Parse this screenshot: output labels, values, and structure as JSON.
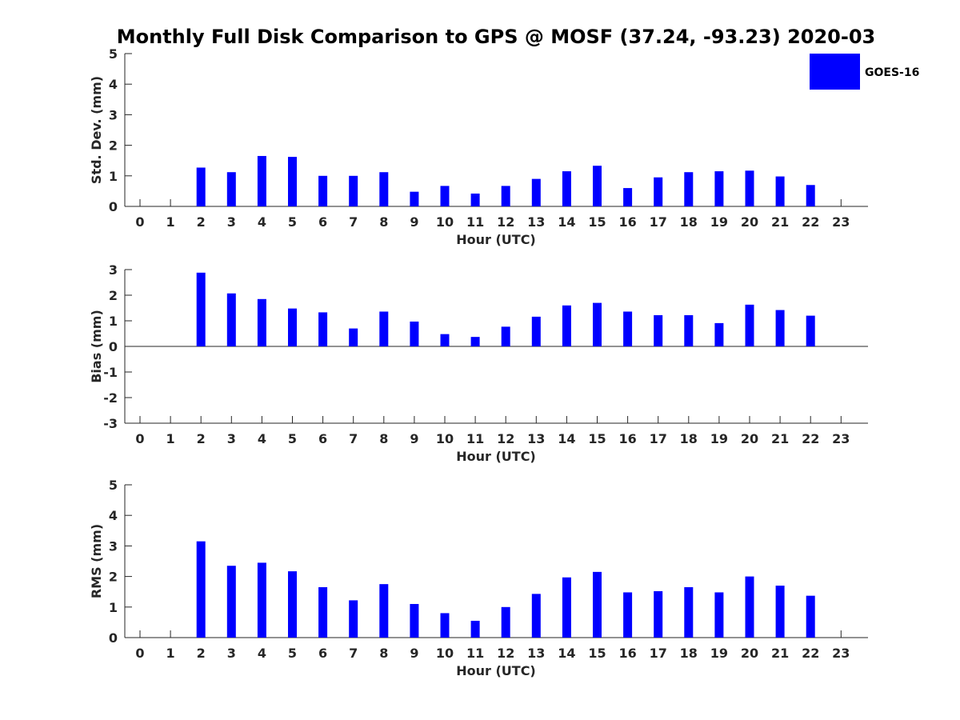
{
  "title": "Monthly Full Disk Comparison to GPS @ MOSF (37.24, -93.23) 2020-03",
  "bar_color": "#0000ff",
  "legend": {
    "label": "GOES-16",
    "placement": "top-right"
  },
  "chart_data": [
    {
      "type": "bar",
      "ylabel": "Std. Dev. (mm)",
      "xlabel": "Hour (UTC)",
      "ylim": [
        0,
        5
      ],
      "yticks": [
        0,
        1,
        2,
        3,
        4,
        5
      ],
      "categories": [
        "0",
        "1",
        "2",
        "3",
        "4",
        "5",
        "6",
        "7",
        "8",
        "9",
        "10",
        "11",
        "12",
        "13",
        "14",
        "15",
        "16",
        "17",
        "18",
        "19",
        "20",
        "21",
        "22",
        "23"
      ],
      "series": [
        {
          "name": "GOES-16",
          "values": [
            null,
            null,
            1.27,
            1.12,
            1.65,
            1.62,
            1.0,
            1.0,
            1.12,
            0.48,
            0.67,
            0.42,
            0.67,
            0.9,
            1.15,
            1.33,
            0.6,
            0.95,
            1.12,
            1.15,
            1.17,
            0.98,
            0.7,
            null
          ]
        }
      ]
    },
    {
      "type": "bar",
      "ylabel": "Bias (mm)",
      "xlabel": "Hour (UTC)",
      "ylim": [
        -3,
        3
      ],
      "yticks": [
        -3,
        -2,
        -1,
        0,
        1,
        2,
        3
      ],
      "zero_line": true,
      "categories": [
        "0",
        "1",
        "2",
        "3",
        "4",
        "5",
        "6",
        "7",
        "8",
        "9",
        "10",
        "11",
        "12",
        "13",
        "14",
        "15",
        "16",
        "17",
        "18",
        "19",
        "20",
        "21",
        "22",
        "23"
      ],
      "series": [
        {
          "name": "GOES-16",
          "values": [
            null,
            null,
            2.88,
            2.07,
            1.85,
            1.48,
            1.33,
            0.7,
            1.36,
            0.97,
            0.48,
            0.37,
            0.77,
            1.16,
            1.6,
            1.7,
            1.36,
            1.22,
            1.22,
            0.91,
            1.63,
            1.42,
            1.2,
            null
          ]
        }
      ]
    },
    {
      "type": "bar",
      "ylabel": "RMS (mm)",
      "xlabel": "Hour (UTC)",
      "ylim": [
        0,
        5
      ],
      "yticks": [
        0,
        1,
        2,
        3,
        4,
        5
      ],
      "categories": [
        "0",
        "1",
        "2",
        "3",
        "4",
        "5",
        "6",
        "7",
        "8",
        "9",
        "10",
        "11",
        "12",
        "13",
        "14",
        "15",
        "16",
        "17",
        "18",
        "19",
        "20",
        "21",
        "22",
        "23"
      ],
      "series": [
        {
          "name": "GOES-16",
          "values": [
            null,
            null,
            3.15,
            2.35,
            2.45,
            2.17,
            1.65,
            1.22,
            1.75,
            1.1,
            0.8,
            0.55,
            1.0,
            1.43,
            1.97,
            2.15,
            1.48,
            1.52,
            1.65,
            1.48,
            2.0,
            1.7,
            1.37,
            null
          ]
        }
      ]
    }
  ]
}
